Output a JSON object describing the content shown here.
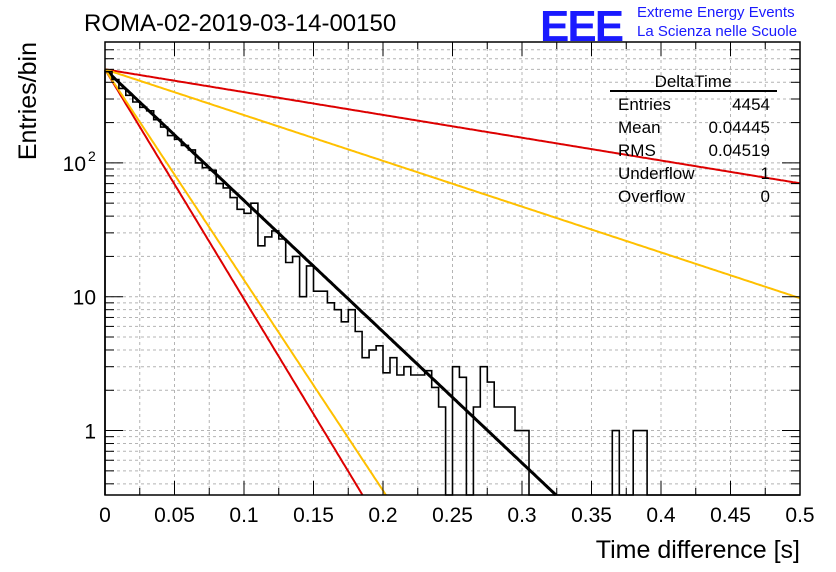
{
  "header": {
    "run_title": "ROMA-02-2019-03-14-00150",
    "logo_text": "EEE",
    "logo_line1": "Extreme Energy Events",
    "logo_line2": "La Scienza nelle Scuole"
  },
  "stats": {
    "name": "DeltaTime",
    "rows": [
      {
        "label": "Entries",
        "value": "4454"
      },
      {
        "label": "Mean",
        "value": "0.04445"
      },
      {
        "label": "RMS",
        "value": "0.04519"
      },
      {
        "label": "Underflow",
        "value": "1"
      },
      {
        "label": "Overflow",
        "value": "0"
      }
    ]
  },
  "chart_data": {
    "type": "histogram",
    "xlabel": "Time difference [s]",
    "ylabel": "Entries/bin",
    "xlim": [
      0,
      0.5
    ],
    "ylim": [
      0.33,
      800
    ],
    "y_scale": "log",
    "grid": true,
    "x_ticks": [
      {
        "value": 0,
        "label": "0"
      },
      {
        "value": 0.05,
        "label": "0.05"
      },
      {
        "value": 0.1,
        "label": "0.1"
      },
      {
        "value": 0.15,
        "label": "0.15"
      },
      {
        "value": 0.2,
        "label": "0.2"
      },
      {
        "value": 0.25,
        "label": "0.25"
      },
      {
        "value": 0.3,
        "label": "0.3"
      },
      {
        "value": 0.35,
        "label": "0.35"
      },
      {
        "value": 0.4,
        "label": "0.4"
      },
      {
        "value": 0.45,
        "label": "0.45"
      },
      {
        "value": 0.5,
        "label": "0.5"
      }
    ],
    "y_ticks": [
      {
        "value": 1,
        "label": "1"
      },
      {
        "value": 10,
        "label": "10"
      },
      {
        "value": 100,
        "label": "10",
        "sup": "2"
      }
    ],
    "bin_width": 0.005,
    "histogram_counts": [
      480,
      420,
      360,
      320,
      285,
      260,
      245,
      210,
      185,
      160,
      150,
      135,
      125,
      100,
      92,
      88,
      70,
      65,
      55,
      45,
      42,
      50,
      24,
      28,
      31,
      27,
      18,
      20,
      10,
      17,
      11,
      11,
      9,
      8,
      6.5,
      8,
      5.5,
      3.5,
      4,
      4.3,
      2.7,
      3.5,
      2.6,
      3,
      2.6,
      2.6,
      2.8,
      2.1,
      1.5,
      0.01,
      3,
      2.5,
      0.01,
      1.5,
      3,
      2.3,
      1.5,
      1.5,
      1.5,
      1,
      1,
      0.01,
      0.01,
      0.01,
      0.01,
      0.01,
      0.01,
      0.01,
      0.01,
      0.01,
      0.01,
      0.01,
      0.01,
      1,
      0.01,
      0.01,
      1,
      1,
      0.01,
      0.01,
      0.01,
      0.01,
      0.01,
      0.01,
      0.01,
      0.01,
      0.01,
      0.01,
      0.01,
      0.01,
      0.01,
      0.01,
      0.01,
      0.01,
      0.01,
      0.01,
      0.01,
      0.01,
      0.01,
      0.01
    ],
    "fit_curves": [
      {
        "color": "#000000",
        "y0": 500,
        "tau": 0.0443
      },
      {
        "color": "#dd0000",
        "y0": 500,
        "tau": 0.0253
      },
      {
        "color": "#dd0000",
        "y0": 500,
        "tau": 0.255
      },
      {
        "color": "#ffc000",
        "y0": 500,
        "tau": 0.0276
      },
      {
        "color": "#ffc000",
        "y0": 500,
        "tau": 0.127
      }
    ]
  }
}
